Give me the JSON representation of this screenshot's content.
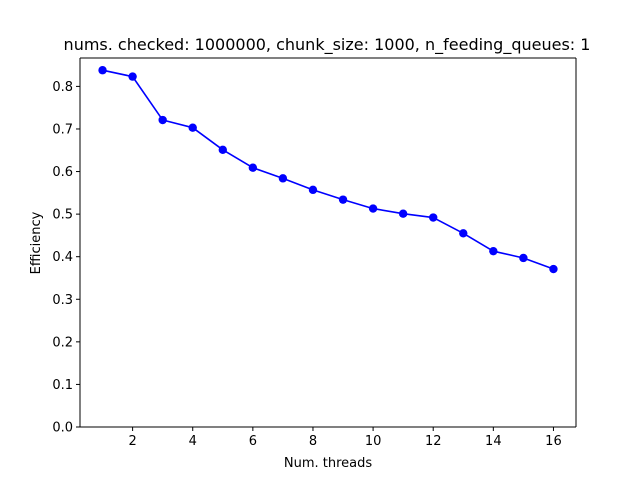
{
  "chart_data": {
    "type": "line",
    "title": "nums. checked: 1000000, chunk_size: 1000, n_feeding_queues: 1",
    "xlabel": "Num. threads",
    "ylabel": "Efficiency",
    "xlim": [
      0.25,
      16.75
    ],
    "ylim": [
      0.0,
      0.8667
    ],
    "xticks": [
      2,
      4,
      6,
      8,
      10,
      12,
      14,
      16
    ],
    "yticks": [
      0.0,
      0.1,
      0.2,
      0.3,
      0.4,
      0.5,
      0.6,
      0.7,
      0.8
    ],
    "ytick_labels": [
      "0.0",
      "0.1",
      "0.2",
      "0.3",
      "0.4",
      "0.5",
      "0.6",
      "0.7",
      "0.8"
    ],
    "grid": false,
    "legend": "none",
    "series": [
      {
        "color": "#0000ff",
        "marker": "circle",
        "x": [
          1,
          2,
          3,
          4,
          5,
          6,
          7,
          8,
          9,
          10,
          11,
          12,
          13,
          14,
          15,
          16
        ],
        "y": [
          0.838,
          0.823,
          0.721,
          0.703,
          0.651,
          0.609,
          0.584,
          0.557,
          0.534,
          0.513,
          0.501,
          0.492,
          0.455,
          0.413,
          0.397,
          0.371
        ]
      }
    ]
  }
}
